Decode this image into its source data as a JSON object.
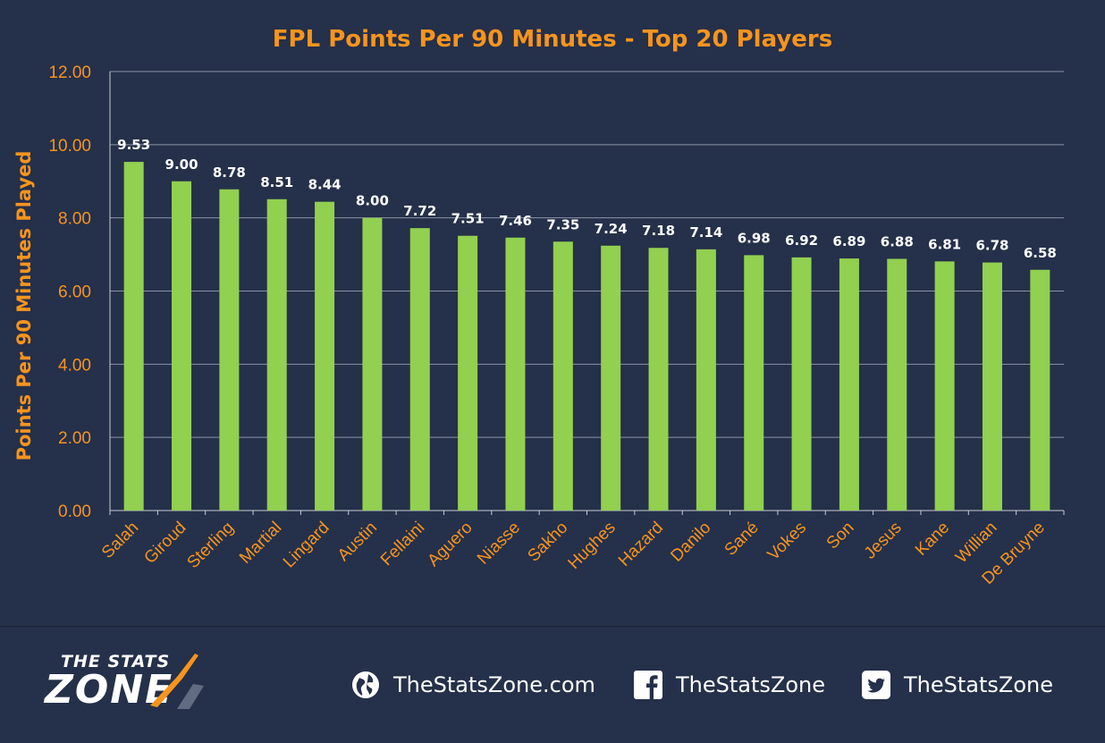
{
  "chart_data": {
    "type": "bar",
    "title": "FPL Points Per 90 Minutes - Top 20 Players",
    "ylabel": "Points Per 90 Minutes Played",
    "xlabel": "",
    "ylim": [
      0,
      12
    ],
    "yticks": [
      "0.00",
      "2.00",
      "4.00",
      "6.00",
      "8.00",
      "10.00",
      "12.00"
    ],
    "grid": true,
    "bar_color": "#92d050",
    "categories": [
      "Salah",
      "Giroud",
      "Sterling",
      "Martial",
      "Lingard",
      "Austin",
      "Fellaini",
      "Aguero",
      "Niasse",
      "Sakho",
      "Hughes",
      "Hazard",
      "Danilo",
      "Sané",
      "Vokes",
      "Son",
      "Jesus",
      "Kane",
      "Willian",
      "De Bruyne"
    ],
    "values": [
      9.53,
      9.0,
      8.78,
      8.51,
      8.44,
      8.0,
      7.72,
      7.51,
      7.46,
      7.35,
      7.24,
      7.18,
      7.14,
      6.98,
      6.92,
      6.89,
      6.88,
      6.81,
      6.78,
      6.58
    ],
    "data_labels": [
      "9.53",
      "9.00",
      "8.78",
      "8.51",
      "8.44",
      "8.00",
      "7.72",
      "7.51",
      "7.46",
      "7.35",
      "7.24",
      "7.18",
      "7.14",
      "6.98",
      "6.92",
      "6.89",
      "6.88",
      "6.81",
      "6.78",
      "6.58"
    ]
  },
  "footer": {
    "logo_top": "THE STATS",
    "logo_bottom": "ZONE",
    "website": "TheStatsZone.com",
    "facebook": "TheStatsZone",
    "twitter": "TheStatsZone"
  },
  "colors": {
    "background": "#25304a",
    "accent": "#f7941d",
    "bar": "#92d050",
    "gridline": "#8a93a6"
  }
}
